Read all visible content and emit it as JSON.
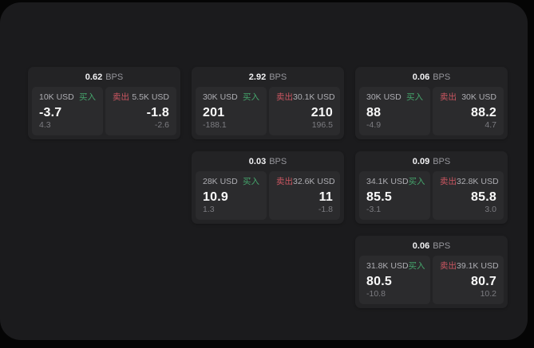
{
  "labels": {
    "buy": "买入",
    "sell": "卖出",
    "bps_unit": "BPS"
  },
  "colors": {
    "page_background": "#050505",
    "window_background": "#1b1b1d",
    "card_background": "#232325",
    "panel_background": "#2b2b2d",
    "buy_green": "#45a56c",
    "sell_red": "#cb5661",
    "text_primary": "#fafafa",
    "text_secondary": "#aeaeb3",
    "text_muted": "#7c7c81"
  },
  "cards": [
    {
      "bps": "0.62",
      "buy": {
        "amount": "10K USD",
        "price": "-3.7",
        "change": "4.3"
      },
      "sell": {
        "amount": "5.5K USD",
        "price": "-1.8",
        "change": "-2.6"
      }
    },
    {
      "bps": "2.92",
      "buy": {
        "amount": "30K USD",
        "price": "201",
        "change": "-188.1"
      },
      "sell": {
        "amount": "30.1K USD",
        "price": "210",
        "change": "196.5"
      }
    },
    {
      "bps": "0.06",
      "buy": {
        "amount": "30K USD",
        "price": "88",
        "change": "-4.9"
      },
      "sell": {
        "amount": "30K USD",
        "price": "88.2",
        "change": "4.7"
      }
    },
    {
      "bps": "0.03",
      "buy": {
        "amount": "28K USD",
        "price": "10.9",
        "change": "1.3"
      },
      "sell": {
        "amount": "32.6K USD",
        "price": "11",
        "change": "-1.8"
      }
    },
    {
      "bps": "0.09",
      "buy": {
        "amount": "34.1K USD",
        "price": "85.5",
        "change": "-3.1"
      },
      "sell": {
        "amount": "32.8K USD",
        "price": "85.8",
        "change": "3.0"
      }
    },
    {
      "bps": "0.06",
      "buy": {
        "amount": "31.8K USD",
        "price": "80.5",
        "change": "-10.8"
      },
      "sell": {
        "amount": "39.1K USD",
        "price": "80.7",
        "change": "10.2"
      }
    }
  ]
}
